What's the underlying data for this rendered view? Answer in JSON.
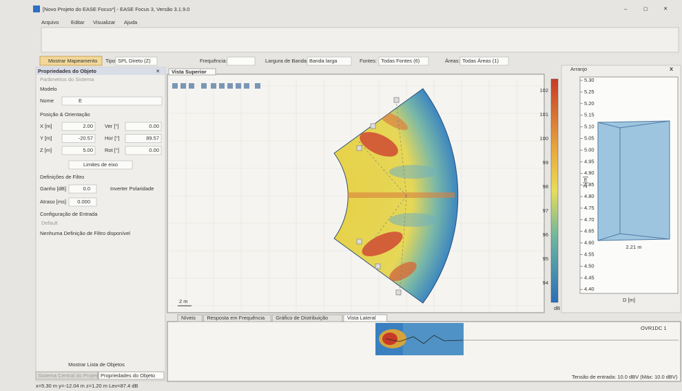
{
  "window": {
    "title": "[Novo Projeto do EASE Focus*] - EASE Focus 3, Versão 3.1.9.0"
  },
  "menu": [
    "Arquivo",
    "Editar",
    "Visualizar",
    "Ajuda"
  ],
  "toolbar": {
    "mapping": "Mostrar Mapeamento",
    "type_label": "Tipo:",
    "type": "SPL Direto (Z)",
    "frequency_label": "Frequência:",
    "bandwidth_label": "Largura de Banda:",
    "bandwidth": "Banda larga",
    "sources_label": "Fontes:",
    "sources": "Todas Fontes (6)",
    "areas_label": "Áreas:",
    "areas": "Todas Áreas (1)"
  },
  "object_panel": {
    "title": "Propriedades do Objeto",
    "subtitle": "Parâmetros do Sistema",
    "model_section": "Modelo",
    "name_label": "Nome",
    "name": "E",
    "position_section": "Posição & Orientação",
    "fields": [
      {
        "label": "X [m]",
        "value": "2.00"
      },
      {
        "label": "Y [m]",
        "value": "-20.57"
      },
      {
        "label": "Z [m]",
        "value": "5.00"
      }
    ],
    "angles": [
      {
        "label": "Ver [°]",
        "value": "0.00"
      },
      {
        "label": "Hor [°]",
        "value": "89.57"
      },
      {
        "label": "Rot [°]",
        "value": "0.00"
      }
    ],
    "limits_button": "Limites de eixo",
    "filter_section": "Definições de Filtro",
    "gain_label": "Ganho [dB]",
    "gain": "0.0",
    "invert": "Inverter Polaridade",
    "delay_label": "Atraso [ms]",
    "delay": "0.000",
    "input_section": "Configuração de Entrada",
    "input_default": "Default",
    "no_filter": "Nenhuma Definição de Filtro disponível",
    "show_list": "Mostrar Lista de Objetos",
    "tabs": [
      "Sistema Central do Projeto",
      "Propriedades do Objeto"
    ]
  },
  "top_view": {
    "tab": "Vista Superior",
    "scale": "2 m",
    "colorbar_ticks": [
      "102",
      "101",
      "100",
      "99",
      "98",
      "97",
      "96",
      "95",
      "94"
    ],
    "colorbar_unit": "dB"
  },
  "arranjo": {
    "title": "Arranjo",
    "y_label": "Z [m]",
    "y_ticks": [
      "5.30",
      "5.25",
      "5.20",
      "5.15",
      "5.10",
      "5.05",
      "5.00",
      "4.95",
      "4.90",
      "4.85",
      "4.80",
      "4.75",
      "4.70",
      "4.65",
      "4.60",
      "4.55",
      "4.50",
      "4.45",
      "4.40"
    ],
    "x_label": "D [m]",
    "width": "2.21 m"
  },
  "bottom_panel": {
    "tabs": [
      "Níveis",
      "Resposta em Frequência",
      "Gráfico de Distribuição",
      "Vista Lateral"
    ],
    "readout": "OVR1DC 1"
  },
  "status": {
    "coords": "x=5.30 m y=-12.04 m z=1.20 m Lev=87.4 dB",
    "input": "Tensão de entrada: 10.0 dBV (Máx: 10.0 dBV)"
  }
}
